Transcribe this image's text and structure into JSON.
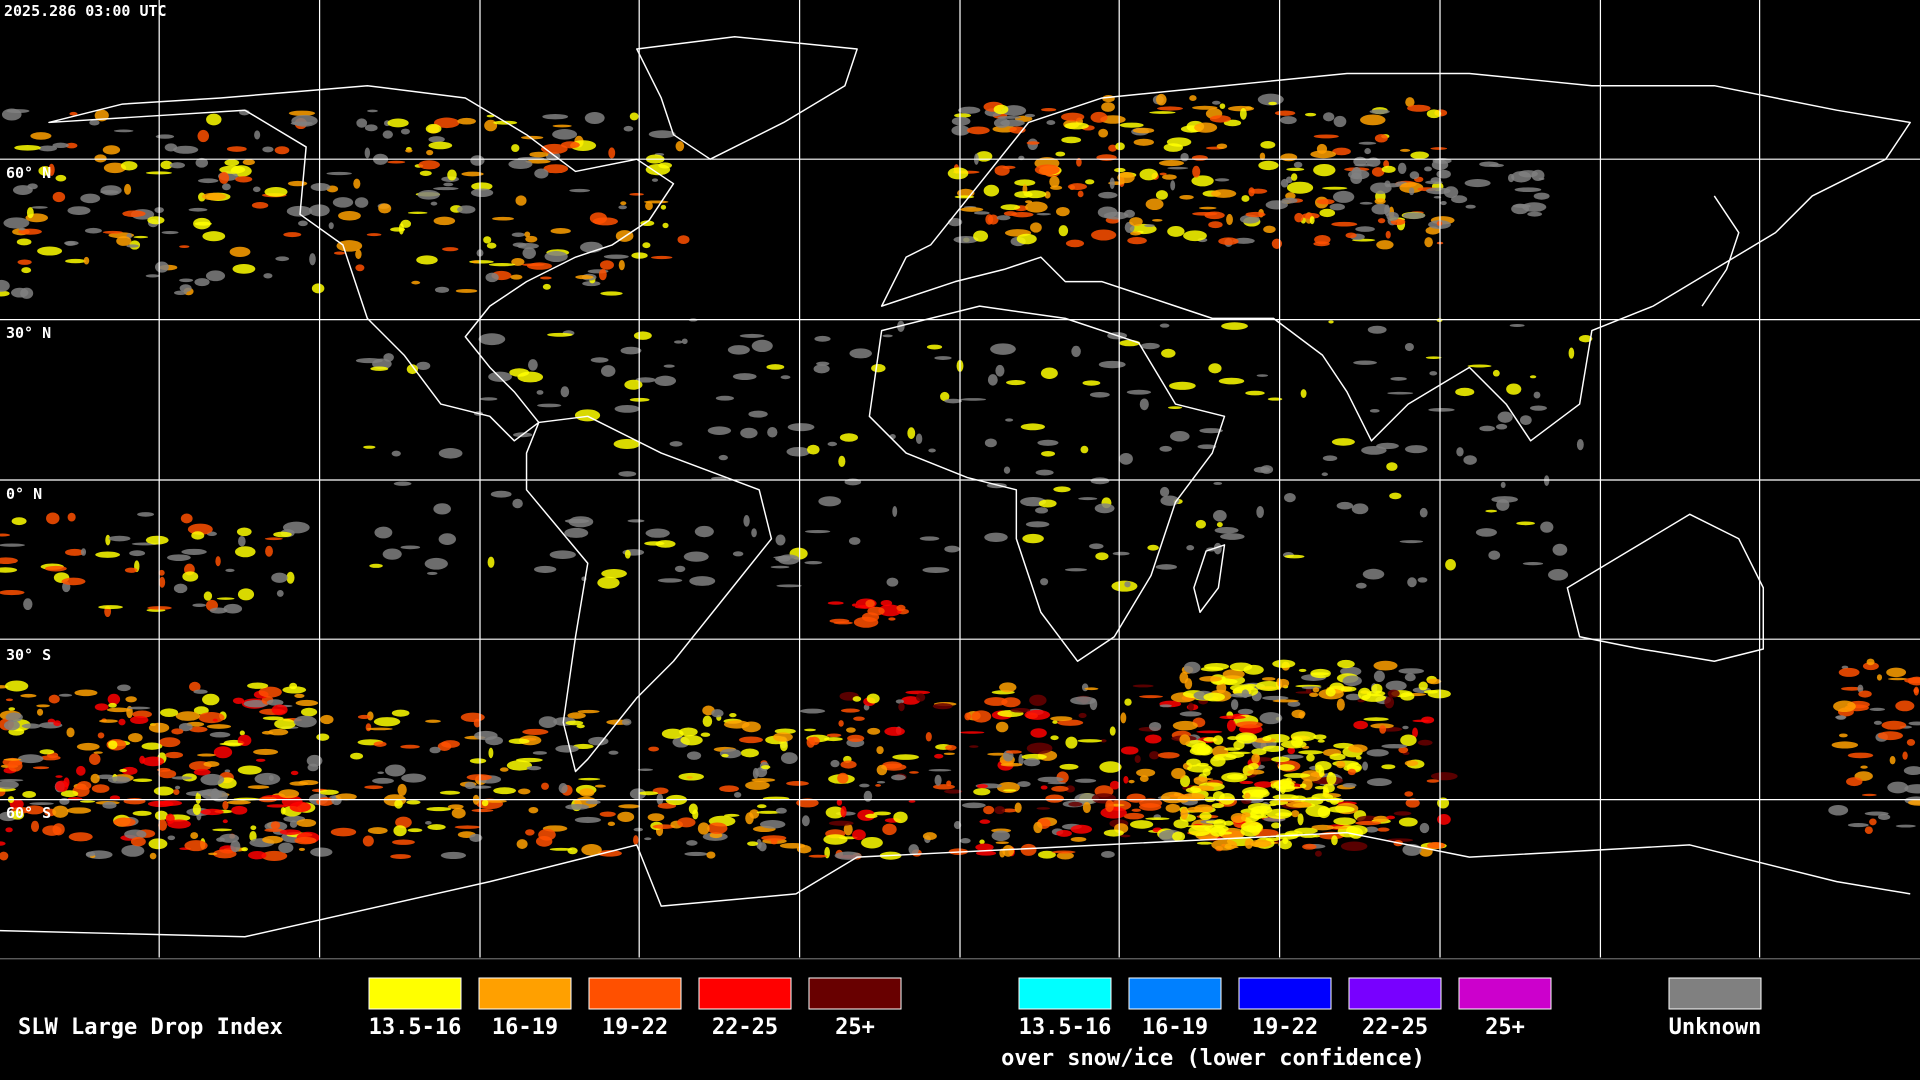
{
  "timestamp": "2025.286 03:00 UTC",
  "lat_labels": [
    "60° N",
    "30° N",
    "0° N",
    "30° S",
    "60° S"
  ],
  "legend": {
    "title": "SLW Large Drop Index",
    "items": [
      {
        "label": "13.5-16",
        "color": "#ffff00"
      },
      {
        "label": "16-19",
        "color": "#ffa000"
      },
      {
        "label": "19-22",
        "color": "#ff5000"
      },
      {
        "label": "22-25",
        "color": "#ff0000"
      },
      {
        "label": "25+",
        "color": "#680000"
      }
    ],
    "snow_items": [
      {
        "label": "13.5-16",
        "color": "#00ffff"
      },
      {
        "label": "16-19",
        "color": "#0080ff"
      },
      {
        "label": "19-22",
        "color": "#0000ff"
      },
      {
        "label": "22-25",
        "color": "#7800ff"
      },
      {
        "label": "25+",
        "color": "#cc00cc"
      }
    ],
    "snow_caption": "over snow/ice (lower confidence)",
    "unknown": {
      "label": "Unknown",
      "color": "#808080"
    }
  }
}
